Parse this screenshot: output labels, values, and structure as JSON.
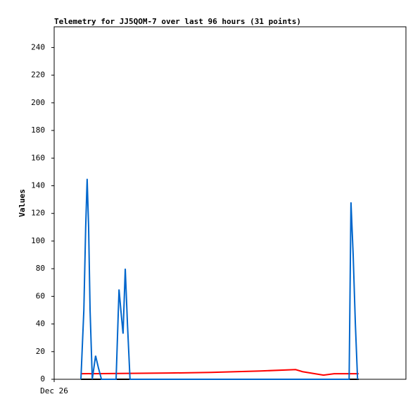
{
  "chart_data": {
    "type": "line",
    "title": "Telemetry for JJ5QOM-7 over last 96 hours (31 points)",
    "y_label": "Values",
    "xlim": [
      0,
      96
    ],
    "xticks": [
      {
        "value": 0,
        "label": "Dec 26"
      }
    ],
    "ylim": [
      0,
      255
    ],
    "yticks": [
      0,
      20,
      40,
      60,
      80,
      100,
      120,
      140,
      160,
      180,
      200,
      220,
      240
    ],
    "grid": false,
    "series": [
      {
        "color": "#000000",
        "x": [
          7.3,
          83.1
        ],
        "values": [
          0,
          0
        ]
      },
      {
        "color": "#ff0000",
        "x": [
          7.3,
          31.3,
          42.8,
          56.3,
          65.9,
          67.8,
          73.5,
          76.4,
          83.1
        ],
        "values": [
          4,
          4.5,
          5,
          6,
          7,
          5.5,
          3,
          4,
          4
        ]
      },
      {
        "color": "#0066cc",
        "x": [
          7.3,
          8.1,
          8.6,
          9.0,
          9.4,
          9.8,
          10.4,
          11.3,
          12.1,
          12.9,
          16.9,
          17.7,
          18.2,
          18.8,
          19.4,
          20.0,
          20.7,
          80.5,
          81.0,
          81.6,
          82.2,
          82.8
        ],
        "values": [
          0,
          50,
          110,
          145,
          110,
          50,
          0,
          17,
          8,
          0,
          0,
          65,
          50,
          33,
          80,
          40,
          0,
          0,
          128,
          90,
          40,
          0
        ]
      }
    ]
  }
}
